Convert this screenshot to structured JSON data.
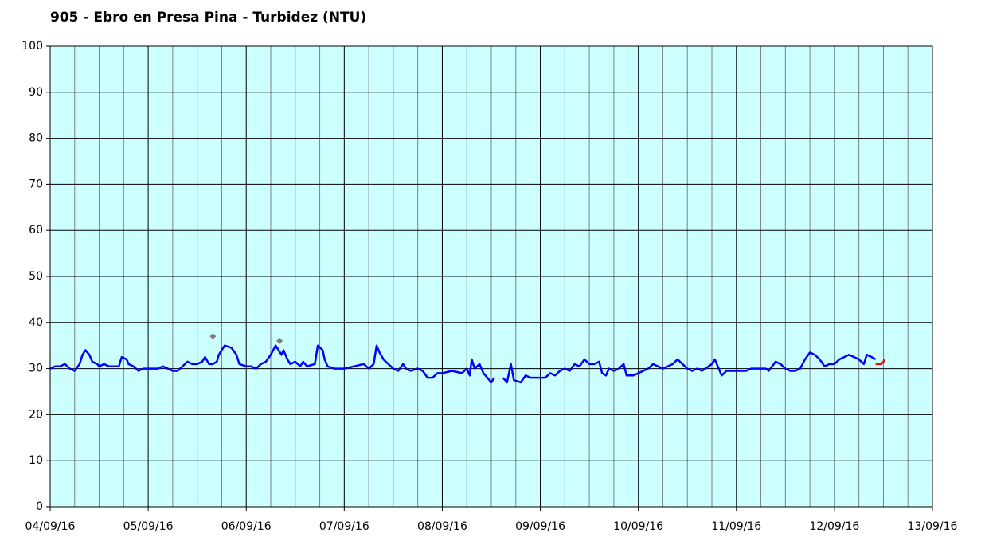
{
  "chart_data": {
    "type": "line",
    "title": "905 - Ebro en Presa Pina - Turbidez (NTU)",
    "xlim": [
      0,
      9
    ],
    "xticks": [
      {
        "value": 0,
        "label": "04/09/16"
      },
      {
        "value": 1,
        "label": "05/09/16"
      },
      {
        "value": 2,
        "label": "06/09/16"
      },
      {
        "value": 3,
        "label": "07/09/16"
      },
      {
        "value": 4,
        "label": "08/09/16"
      },
      {
        "value": 5,
        "label": "09/09/16"
      },
      {
        "value": 6,
        "label": "10/09/16"
      },
      {
        "value": 7,
        "label": "11/09/16"
      },
      {
        "value": 8,
        "label": "12/09/16"
      },
      {
        "value": 9,
        "label": "13/09/16"
      }
    ],
    "ylim": [
      0,
      100
    ],
    "yticks": [
      0,
      10,
      20,
      30,
      40,
      50,
      60,
      70,
      80,
      90,
      100
    ],
    "grid": true,
    "background": "#ccffff",
    "series": [
      {
        "color": "#0000ff",
        "marker": "none",
        "x": [
          0.0,
          0.05,
          0.1,
          0.15,
          0.2,
          0.25,
          0.3,
          0.33,
          0.36,
          0.4,
          0.43,
          0.48,
          0.5,
          0.55,
          0.6,
          0.7,
          0.73,
          0.78,
          0.8,
          0.85,
          0.9,
          0.95,
          1.0,
          1.1,
          1.15,
          1.2,
          1.25,
          1.3,
          1.35,
          1.4,
          1.45,
          1.5,
          1.55,
          1.58,
          1.62,
          1.66,
          1.7,
          1.72,
          1.75,
          1.78,
          1.85,
          1.9,
          1.93,
          2.0,
          2.05,
          2.1,
          2.15,
          2.2,
          2.25,
          2.3,
          2.33,
          2.36,
          2.38,
          2.42,
          2.45,
          2.5,
          2.55,
          2.58,
          2.62,
          2.7,
          2.73,
          2.78,
          2.8,
          2.83,
          2.9,
          3.0,
          3.1,
          3.2,
          3.25,
          3.3,
          3.33,
          3.36,
          3.4,
          3.45,
          3.5,
          3.55,
          3.6,
          3.63,
          3.68,
          3.75,
          3.8,
          3.85,
          3.9,
          3.95,
          4.0,
          4.1,
          4.2,
          4.25,
          4.28,
          4.3,
          4.33,
          4.38,
          4.42,
          4.46,
          4.5,
          4.53,
          4.56,
          4.62,
          4.66,
          4.7,
          4.73,
          4.8,
          4.85,
          4.9,
          5.0,
          5.05,
          5.1,
          5.15,
          5.2,
          5.25,
          5.3,
          5.35,
          5.4,
          5.45,
          5.5,
          5.55,
          5.6,
          5.63,
          5.67,
          5.7,
          5.75,
          5.8,
          5.85,
          5.88,
          5.95,
          6.0,
          6.05,
          6.1,
          6.15,
          6.2,
          6.25,
          6.3,
          6.35,
          6.4,
          6.45,
          6.5,
          6.55,
          6.6,
          6.65,
          6.75,
          6.78,
          6.82,
          6.85,
          6.9,
          7.0,
          7.1,
          7.15,
          7.3,
          7.33,
          7.4,
          7.45,
          7.5,
          7.55,
          7.6,
          7.65,
          7.7,
          7.75,
          7.8,
          7.85,
          7.9,
          7.95,
          8.0,
          8.05,
          8.1,
          8.15,
          8.2,
          8.25,
          8.3,
          8.33,
          8.38,
          8.42
        ],
        "values": [
          30,
          30.5,
          30.5,
          31,
          30,
          29.5,
          31,
          33,
          34,
          33,
          31.5,
          31,
          30.5,
          31,
          30.5,
          30.5,
          32.5,
          32,
          31,
          30.5,
          29.5,
          30,
          30,
          30,
          30.5,
          30,
          29.5,
          29.5,
          30.5,
          31.5,
          31,
          31,
          31.5,
          32.5,
          31,
          31,
          31.5,
          33,
          34,
          35,
          34.5,
          33,
          31,
          30.5,
          30.5,
          30,
          31,
          31.5,
          33,
          35,
          34,
          33,
          34,
          32,
          31,
          31.5,
          30.5,
          31.5,
          30.5,
          31,
          35,
          34,
          32,
          30.5,
          30,
          30,
          30.5,
          31,
          30,
          31,
          35,
          33.5,
          32,
          31,
          30,
          29.5,
          31,
          30,
          29.5,
          30,
          29.5,
          28,
          28,
          29,
          29,
          29.5,
          29,
          30,
          28.5,
          32,
          30,
          31,
          29,
          28,
          27,
          28,
          null,
          28,
          27,
          31,
          27.5,
          27,
          28.5,
          28,
          28,
          28,
          29,
          28.5,
          29.5,
          30,
          29.5,
          31,
          30.5,
          32,
          31,
          31,
          31.5,
          29,
          28.5,
          30,
          29.5,
          30,
          31,
          28.5,
          28.5,
          29,
          29.5,
          30,
          31,
          30.5,
          30,
          30.5,
          31,
          32,
          31,
          30,
          29.5,
          30,
          29.5,
          31,
          32,
          30,
          28.5,
          29.5,
          29.5,
          29.5,
          30,
          30,
          29.5,
          31.5,
          31,
          30,
          29.5,
          29.5,
          30,
          32,
          33.5,
          33,
          32,
          30.5,
          31,
          31,
          32,
          32.5,
          33,
          32.5,
          32,
          31,
          33,
          32.5,
          32
        ]
      },
      {
        "color": "#ff0000",
        "marker": "none",
        "x": [
          8.42,
          8.48,
          8.5,
          8.51
        ],
        "values": [
          31,
          31,
          31.5,
          32
        ]
      },
      {
        "color": "#808080",
        "marker": "diamond",
        "x": [
          1.66,
          2.34
        ],
        "values": [
          37,
          36
        ]
      }
    ]
  }
}
